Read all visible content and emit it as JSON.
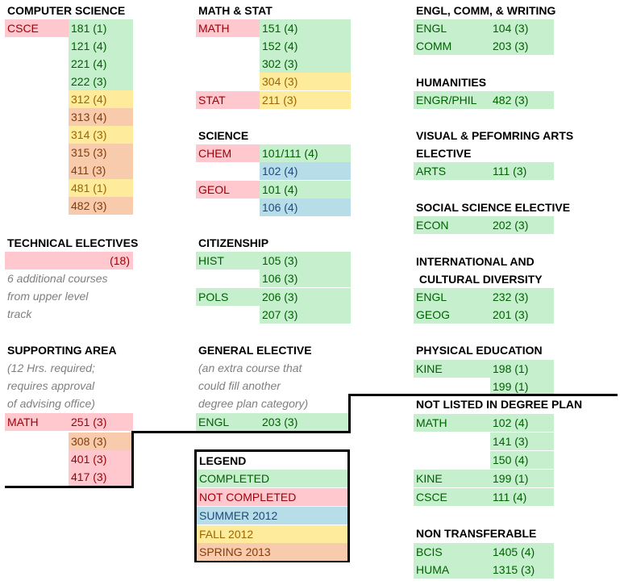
{
  "colors": {
    "completed": "#c6efce",
    "not_completed": "#ffc7ce",
    "summer_2012": "#b7dee8",
    "fall_2012": "#ffeb9c",
    "spring_2013": "#f8cbad"
  },
  "cs": {
    "title": "COMPUTER SCIENCE",
    "dept": "CSCE",
    "courses": [
      "181 (1)",
      "121 (4)",
      "221 (4)",
      "222 (3)",
      "312 (4)",
      "313 (4)",
      "314 (3)",
      "315 (3)",
      "411 (3)",
      "481 (1)",
      "482 (3)"
    ]
  },
  "tech": {
    "title": "TECHNICAL ELECTIVES",
    "hours": "(18)",
    "note": [
      "6 additional courses",
      "from upper level",
      "track"
    ]
  },
  "support": {
    "title": "SUPPORTING AREA",
    "note": [
      "(12 Hrs. required;",
      "requires approval",
      "of advising office)"
    ],
    "dept": "MATH",
    "courses": [
      "251 (3)",
      "308 (3)",
      "401 (3)",
      "417 (3)"
    ]
  },
  "math": {
    "title": "MATH & STAT",
    "math_dept": "MATH",
    "stat_dept": "STAT",
    "courses": [
      "151 (4)",
      "152 (4)",
      "302 (3)",
      "304 (3)",
      "211 (3)"
    ]
  },
  "science": {
    "title": "SCIENCE",
    "chem": "CHEM",
    "geol": "GEOL",
    "courses": [
      "101/111 (4)",
      "102 (4)",
      "101 (4)",
      "106 (4)"
    ]
  },
  "citizen": {
    "title": "CITIZENSHIP",
    "hist": "HIST",
    "pols": "POLS",
    "courses": [
      "105 (3)",
      "106 (3)",
      "206 (3)",
      "207 (3)"
    ]
  },
  "general": {
    "title": "GENERAL ELECTIVE",
    "note": [
      "(an extra course that",
      "could fill another",
      "degree plan category)"
    ],
    "dept": "ENGL",
    "course": "203 (3)"
  },
  "legend": {
    "title": "LEGEND",
    "items": [
      "COMPLETED",
      "NOT COMPLETED",
      "SUMMER 2012",
      "FALL 2012",
      "SPRING 2013"
    ]
  },
  "engl": {
    "title": "ENGL, COMM, & WRITING",
    "rows": [
      [
        "ENGL",
        "104 (3)"
      ],
      [
        "COMM",
        "203 (3)"
      ]
    ]
  },
  "hum": {
    "title": "HUMANITIES",
    "rows": [
      [
        "ENGR/PHIL",
        "482 (3)"
      ]
    ]
  },
  "arts": {
    "title1": "VISUAL & PEFOMRING ARTS",
    "title2": "ELECTIVE",
    "rows": [
      [
        "ARTS",
        "111 (3)"
      ]
    ]
  },
  "social": {
    "title": "SOCIAL SCIENCE ELECTIVE",
    "rows": [
      [
        "ECON",
        "202 (3)"
      ]
    ]
  },
  "intl": {
    "title1": "INTERNATIONAL AND",
    "title2": " CULTURAL DIVERSITY",
    "rows": [
      [
        "ENGL",
        "232 (3)"
      ],
      [
        "GEOG",
        "201 (3)"
      ]
    ]
  },
  "pe": {
    "title": "PHYSICAL EDUCATION",
    "dept": "KINE",
    "courses": [
      "198 (1)",
      "199 (1)"
    ]
  },
  "notlisted": {
    "title": "NOT LISTED IN DEGREE PLAN",
    "math": "MATH",
    "kine": "KINE",
    "csce": "CSCE",
    "courses": [
      "102 (4)",
      "141 (3)",
      "150 (4)",
      "199 (1)",
      "111 (4)"
    ]
  },
  "nontrans": {
    "title": "NON TRANSFERABLE",
    "rows": [
      [
        "BCIS",
        "1405 (4)"
      ],
      [
        "HUMA",
        "1315 (3)"
      ]
    ]
  }
}
